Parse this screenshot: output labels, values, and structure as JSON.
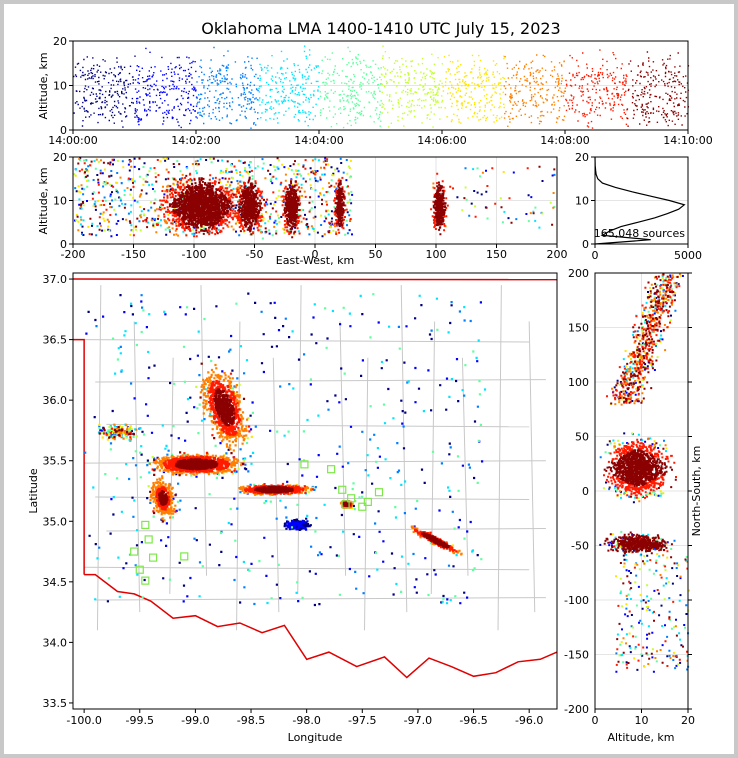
{
  "chart_data": {
    "type": "scatter",
    "title": "Oklahoma LMA 1400-1410 UTC July 15, 2023",
    "color_scale": [
      "#00007f",
      "#0000ff",
      "#0080ff",
      "#00e5ff",
      "#5fff9f",
      "#c4ff33",
      "#ffe500",
      "#ff8000",
      "#ff1a00",
      "#8b0000"
    ],
    "time_altitude": {
      "ylabel": "Altitude, km",
      "ylim": [
        0,
        20
      ],
      "yticks": [
        "0",
        "10",
        "20"
      ],
      "xticks": [
        "14:00:00",
        "14:02:00",
        "14:04:00",
        "14:06:00",
        "14:08:00",
        "14:10:00"
      ],
      "xrange_minutes": [
        0,
        10
      ]
    },
    "ew_altitude": {
      "xlabel": "East-West, km",
      "ylabel": "Altitude, km",
      "xlim": [
        -200,
        200
      ],
      "ylim": [
        0,
        20
      ],
      "xticks": [
        "-200",
        "-150",
        "-100",
        "-50",
        "0",
        "50",
        "100",
        "150",
        "200"
      ],
      "yticks": [
        "0",
        "10",
        "20"
      ],
      "clusters": [
        {
          "x": -95,
          "spread": 40,
          "count": 1800
        },
        {
          "x": -55,
          "spread": 15,
          "count": 600
        },
        {
          "x": -20,
          "spread": 10,
          "count": 400
        },
        {
          "x": 20,
          "spread": 6,
          "count": 250
        },
        {
          "x": 102,
          "spread": 8,
          "count": 350
        }
      ]
    },
    "histogram": {
      "xlim": [
        0,
        5000
      ],
      "ylim": [
        0,
        20
      ],
      "xticks": [
        "0",
        "5000"
      ],
      "yticks": [
        "0",
        "10",
        "20"
      ],
      "annotation": "165,048 sources",
      "profile_alt": [
        0,
        1,
        2,
        3,
        4,
        5,
        6,
        7,
        8,
        9,
        10,
        11,
        12,
        13,
        14,
        15,
        16,
        17,
        18,
        19,
        20
      ],
      "profile_count": [
        0,
        3000,
        400,
        800,
        1400,
        2300,
        3200,
        3900,
        4500,
        4800,
        4000,
        3000,
        2000,
        1100,
        400,
        150,
        60,
        30,
        10,
        5,
        0
      ]
    },
    "plan_view": {
      "xlabel": "Longitude",
      "ylabel": "Latitude",
      "xlim": [
        -100.1,
        -95.75
      ],
      "ylim": [
        33.45,
        37.05
      ],
      "xticks": [
        "-100.0",
        "-99.5",
        "-99.0",
        "-98.5",
        "-98.0",
        "-97.5",
        "-97.0",
        "-96.5",
        "-96.0"
      ],
      "yticks": [
        "33.5",
        "34.0",
        "34.5",
        "35.0",
        "35.5",
        "36.0",
        "36.5",
        "37.0"
      ],
      "stations": [
        {
          "lon": -99.45,
          "lat": 34.97
        },
        {
          "lon": -99.42,
          "lat": 34.85
        },
        {
          "lon": -99.55,
          "lat": 34.75
        },
        {
          "lon": -99.5,
          "lat": 34.6
        },
        {
          "lon": -99.45,
          "lat": 34.51
        },
        {
          "lon": -99.38,
          "lat": 34.7
        },
        {
          "lon": -99.1,
          "lat": 34.71
        },
        {
          "lon": -98.02,
          "lat": 35.47
        },
        {
          "lon": -97.78,
          "lat": 35.43
        },
        {
          "lon": -97.68,
          "lat": 35.26
        },
        {
          "lon": -97.6,
          "lat": 35.19
        },
        {
          "lon": -97.5,
          "lat": 35.12
        },
        {
          "lon": -97.45,
          "lat": 35.16
        },
        {
          "lon": -97.35,
          "lat": 35.24
        },
        {
          "lon": -97.65,
          "lat": 35.14
        }
      ]
    },
    "ns_altitude": {
      "xlabel": "Altitude, km",
      "ylabel": "North-South, km",
      "xlim": [
        0,
        20
      ],
      "ylim": [
        -200,
        200
      ],
      "xticks": [
        "0",
        "10",
        "20"
      ],
      "yticks": [
        "-200",
        "-150",
        "-100",
        "-50",
        "0",
        "50",
        "100",
        "150",
        "200"
      ]
    }
  }
}
